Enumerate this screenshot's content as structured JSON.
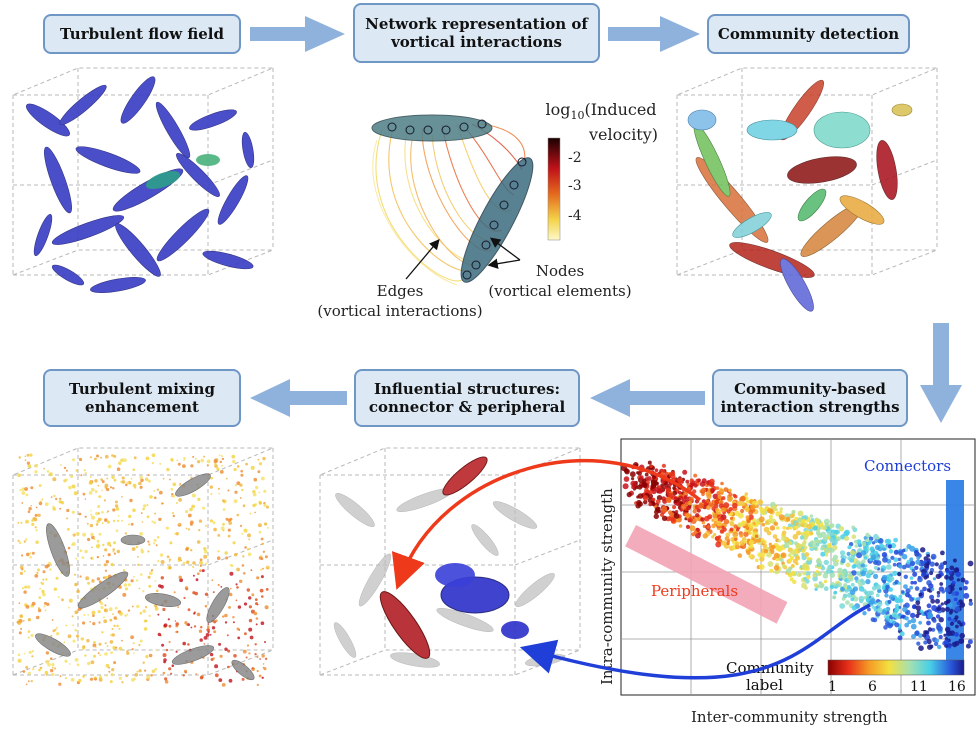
{
  "colors": {
    "box_fill": "#dce9f5",
    "box_border": "#6f97c6",
    "arrow": "#8fb2dc",
    "red_arrow": "#ee3a1b",
    "blue_arrow": "#1f3fd8",
    "vortex_blue": "#3b3fc4",
    "connector_blue": "#2f7fe6",
    "peripheral_pink": "#f2a3b5"
  },
  "steps": {
    "s1": "Turbulent flow field",
    "s2_line1": "Network representation of",
    "s2_line2": "vortical interactions",
    "s3": "Community detection",
    "s4_line1": "Community-based",
    "s4_line2": "interaction strengths",
    "s5_line1": "Influential structures:",
    "s5_line2": "connector & peripheral",
    "s6_line1": "Turbulent mixing",
    "s6_line2": "enhancement"
  },
  "network": {
    "colorbar_title_a": "log",
    "colorbar_title_sub": "10",
    "colorbar_title_b": "(Induced",
    "colorbar_title_c": "velocity)",
    "colorbar_ticks": [
      "-2",
      "-3",
      "-4"
    ],
    "edges_label_1": "Edges",
    "edges_label_2": "(vortical interactions)",
    "nodes_label_1": "Nodes",
    "nodes_label_2": "(vortical elements)"
  },
  "chart_data": {
    "type": "scatter",
    "xlabel": "Inter-community strength",
    "ylabel": "Intra-community strength",
    "annotations": [
      "Connectors",
      "Peripherals"
    ],
    "colorbar": {
      "title_1": "Community",
      "title_2": "label",
      "ticks": [
        "1",
        "6",
        "11",
        "16"
      ],
      "range": [
        1,
        16
      ]
    },
    "grid": true
  }
}
